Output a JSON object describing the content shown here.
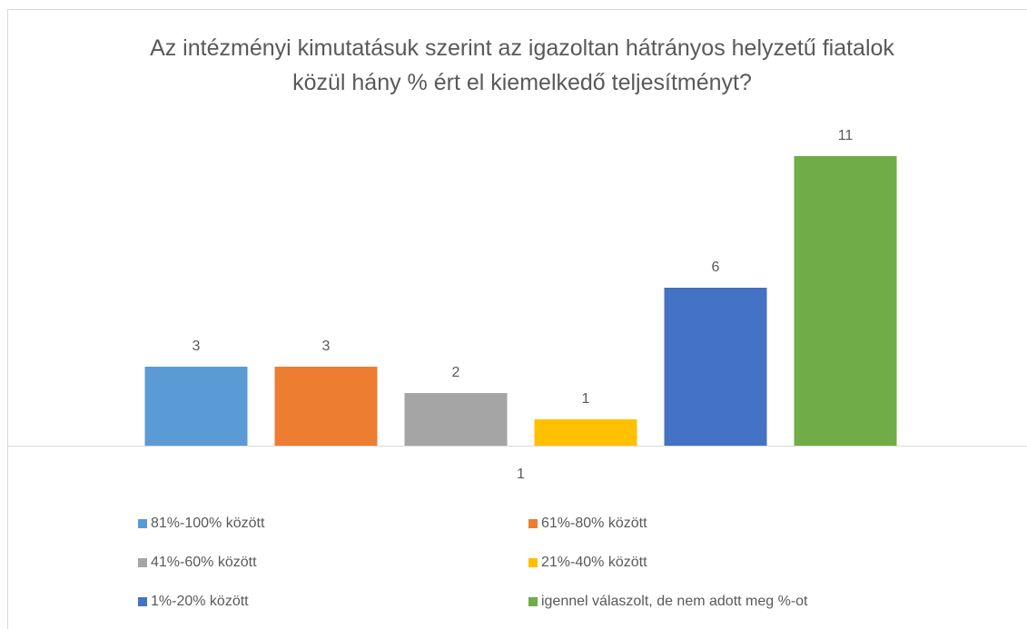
{
  "chart_data": {
    "type": "bar",
    "title": "Az intézményi kimutatásuk szerint az igazoltan hátrányos helyzetű fiatalok közül hány % ért el kiemelkedő teljesítményt?",
    "categories": [
      "1"
    ],
    "series": [
      {
        "name": "81%-100% között",
        "color": "#5b9bd5",
        "values": [
          3
        ]
      },
      {
        "name": "61%-80% között",
        "color": "#ed7d31",
        "values": [
          3
        ]
      },
      {
        "name": "41%-60% között",
        "color": "#a5a5a5",
        "values": [
          2
        ]
      },
      {
        "name": "21%-40% között",
        "color": "#ffc000",
        "values": [
          1
        ]
      },
      {
        "name": "1%-20% között",
        "color": "#4472c4",
        "values": [
          6
        ]
      },
      {
        "name": "igennel válaszolt, de nem adott meg %-ot",
        "color": "#70ad47",
        "values": [
          11
        ]
      }
    ],
    "ylim": [
      0,
      12
    ],
    "legend": "bottom"
  }
}
